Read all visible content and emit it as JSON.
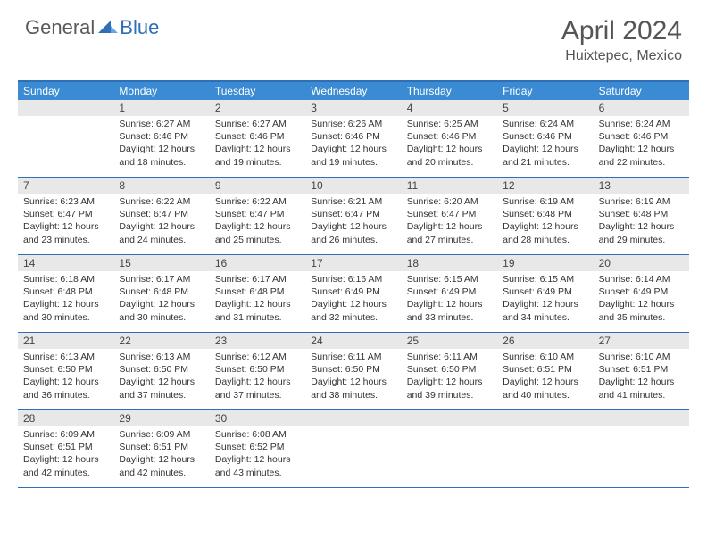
{
  "logo": {
    "text1": "General",
    "text2": "Blue"
  },
  "title": "April 2024",
  "location": "Huixtepec, Mexico",
  "colors": {
    "header_bg": "#3b8bd4",
    "border": "#2e6fb5",
    "daynum_bg": "#e8e8e8",
    "text": "#333333",
    "logo_gray": "#5a5a5a",
    "logo_blue": "#2e6fb5"
  },
  "day_headers": [
    "Sunday",
    "Monday",
    "Tuesday",
    "Wednesday",
    "Thursday",
    "Friday",
    "Saturday"
  ],
  "weeks": [
    [
      {
        "n": "",
        "sr": "",
        "ss": "",
        "dl": ""
      },
      {
        "n": "1",
        "sr": "Sunrise: 6:27 AM",
        "ss": "Sunset: 6:46 PM",
        "dl": "Daylight: 12 hours and 18 minutes."
      },
      {
        "n": "2",
        "sr": "Sunrise: 6:27 AM",
        "ss": "Sunset: 6:46 PM",
        "dl": "Daylight: 12 hours and 19 minutes."
      },
      {
        "n": "3",
        "sr": "Sunrise: 6:26 AM",
        "ss": "Sunset: 6:46 PM",
        "dl": "Daylight: 12 hours and 19 minutes."
      },
      {
        "n": "4",
        "sr": "Sunrise: 6:25 AM",
        "ss": "Sunset: 6:46 PM",
        "dl": "Daylight: 12 hours and 20 minutes."
      },
      {
        "n": "5",
        "sr": "Sunrise: 6:24 AM",
        "ss": "Sunset: 6:46 PM",
        "dl": "Daylight: 12 hours and 21 minutes."
      },
      {
        "n": "6",
        "sr": "Sunrise: 6:24 AM",
        "ss": "Sunset: 6:46 PM",
        "dl": "Daylight: 12 hours and 22 minutes."
      }
    ],
    [
      {
        "n": "7",
        "sr": "Sunrise: 6:23 AM",
        "ss": "Sunset: 6:47 PM",
        "dl": "Daylight: 12 hours and 23 minutes."
      },
      {
        "n": "8",
        "sr": "Sunrise: 6:22 AM",
        "ss": "Sunset: 6:47 PM",
        "dl": "Daylight: 12 hours and 24 minutes."
      },
      {
        "n": "9",
        "sr": "Sunrise: 6:22 AM",
        "ss": "Sunset: 6:47 PM",
        "dl": "Daylight: 12 hours and 25 minutes."
      },
      {
        "n": "10",
        "sr": "Sunrise: 6:21 AM",
        "ss": "Sunset: 6:47 PM",
        "dl": "Daylight: 12 hours and 26 minutes."
      },
      {
        "n": "11",
        "sr": "Sunrise: 6:20 AM",
        "ss": "Sunset: 6:47 PM",
        "dl": "Daylight: 12 hours and 27 minutes."
      },
      {
        "n": "12",
        "sr": "Sunrise: 6:19 AM",
        "ss": "Sunset: 6:48 PM",
        "dl": "Daylight: 12 hours and 28 minutes."
      },
      {
        "n": "13",
        "sr": "Sunrise: 6:19 AM",
        "ss": "Sunset: 6:48 PM",
        "dl": "Daylight: 12 hours and 29 minutes."
      }
    ],
    [
      {
        "n": "14",
        "sr": "Sunrise: 6:18 AM",
        "ss": "Sunset: 6:48 PM",
        "dl": "Daylight: 12 hours and 30 minutes."
      },
      {
        "n": "15",
        "sr": "Sunrise: 6:17 AM",
        "ss": "Sunset: 6:48 PM",
        "dl": "Daylight: 12 hours and 30 minutes."
      },
      {
        "n": "16",
        "sr": "Sunrise: 6:17 AM",
        "ss": "Sunset: 6:48 PM",
        "dl": "Daylight: 12 hours and 31 minutes."
      },
      {
        "n": "17",
        "sr": "Sunrise: 6:16 AM",
        "ss": "Sunset: 6:49 PM",
        "dl": "Daylight: 12 hours and 32 minutes."
      },
      {
        "n": "18",
        "sr": "Sunrise: 6:15 AM",
        "ss": "Sunset: 6:49 PM",
        "dl": "Daylight: 12 hours and 33 minutes."
      },
      {
        "n": "19",
        "sr": "Sunrise: 6:15 AM",
        "ss": "Sunset: 6:49 PM",
        "dl": "Daylight: 12 hours and 34 minutes."
      },
      {
        "n": "20",
        "sr": "Sunrise: 6:14 AM",
        "ss": "Sunset: 6:49 PM",
        "dl": "Daylight: 12 hours and 35 minutes."
      }
    ],
    [
      {
        "n": "21",
        "sr": "Sunrise: 6:13 AM",
        "ss": "Sunset: 6:50 PM",
        "dl": "Daylight: 12 hours and 36 minutes."
      },
      {
        "n": "22",
        "sr": "Sunrise: 6:13 AM",
        "ss": "Sunset: 6:50 PM",
        "dl": "Daylight: 12 hours and 37 minutes."
      },
      {
        "n": "23",
        "sr": "Sunrise: 6:12 AM",
        "ss": "Sunset: 6:50 PM",
        "dl": "Daylight: 12 hours and 37 minutes."
      },
      {
        "n": "24",
        "sr": "Sunrise: 6:11 AM",
        "ss": "Sunset: 6:50 PM",
        "dl": "Daylight: 12 hours and 38 minutes."
      },
      {
        "n": "25",
        "sr": "Sunrise: 6:11 AM",
        "ss": "Sunset: 6:50 PM",
        "dl": "Daylight: 12 hours and 39 minutes."
      },
      {
        "n": "26",
        "sr": "Sunrise: 6:10 AM",
        "ss": "Sunset: 6:51 PM",
        "dl": "Daylight: 12 hours and 40 minutes."
      },
      {
        "n": "27",
        "sr": "Sunrise: 6:10 AM",
        "ss": "Sunset: 6:51 PM",
        "dl": "Daylight: 12 hours and 41 minutes."
      }
    ],
    [
      {
        "n": "28",
        "sr": "Sunrise: 6:09 AM",
        "ss": "Sunset: 6:51 PM",
        "dl": "Daylight: 12 hours and 42 minutes."
      },
      {
        "n": "29",
        "sr": "Sunrise: 6:09 AM",
        "ss": "Sunset: 6:51 PM",
        "dl": "Daylight: 12 hours and 42 minutes."
      },
      {
        "n": "30",
        "sr": "Sunrise: 6:08 AM",
        "ss": "Sunset: 6:52 PM",
        "dl": "Daylight: 12 hours and 43 minutes."
      },
      {
        "n": "",
        "sr": "",
        "ss": "",
        "dl": ""
      },
      {
        "n": "",
        "sr": "",
        "ss": "",
        "dl": ""
      },
      {
        "n": "",
        "sr": "",
        "ss": "",
        "dl": ""
      },
      {
        "n": "",
        "sr": "",
        "ss": "",
        "dl": ""
      }
    ]
  ]
}
